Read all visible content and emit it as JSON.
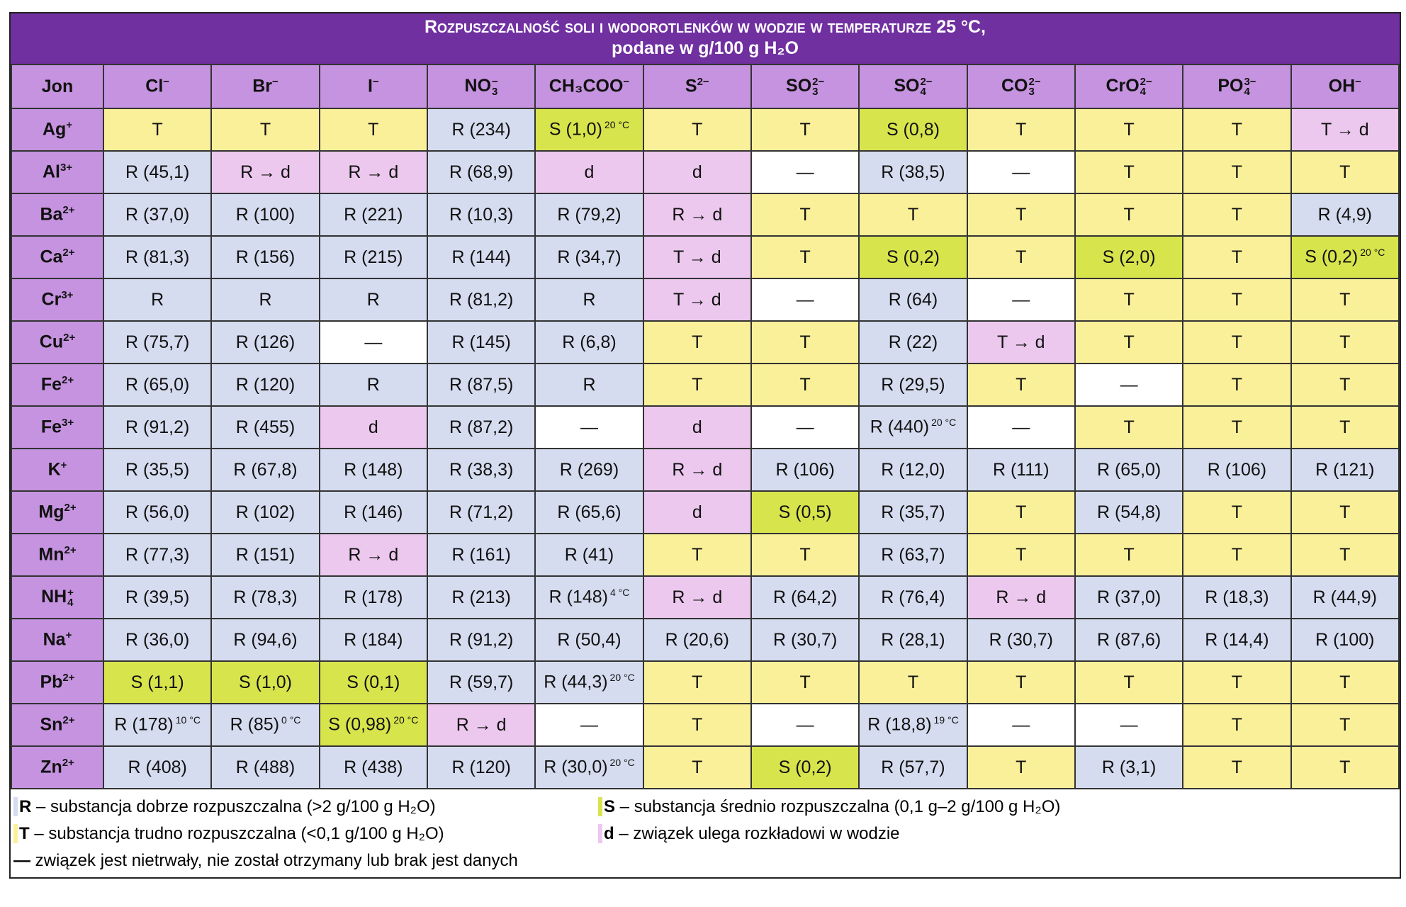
{
  "title": {
    "line1": "Rozpuszczalność soli i wodorotlenków w wodzie w temperaturze 25 °C,",
    "line2": "podane w g/100 g H₂O"
  },
  "header": {
    "corner": "Jon",
    "anions": [
      {
        "base": "Cl",
        "sup": "−"
      },
      {
        "base": "Br",
        "sup": "−"
      },
      {
        "base": "I",
        "sup": "−"
      },
      {
        "base": "NO",
        "sub": "3",
        "sup": "−"
      },
      {
        "base": "CH₃COO",
        "sup": "−"
      },
      {
        "base": "S",
        "sup": "2−"
      },
      {
        "base": "SO",
        "sub": "3",
        "sup": "2−"
      },
      {
        "base": "SO",
        "sub": "4",
        "sup": "2−"
      },
      {
        "base": "CO",
        "sub": "3",
        "sup": "2−"
      },
      {
        "base": "CrO",
        "sub": "4",
        "sup": "2−"
      },
      {
        "base": "PO",
        "sub": "4",
        "sup": "3−"
      },
      {
        "base": "OH",
        "sup": "−"
      }
    ]
  },
  "colors": {
    "T": "#fbf09a",
    "R": "#d5dcef",
    "S": "#d8e44c",
    "d": "#ecc8ee",
    "title": "#7030a0",
    "header": "#c593df"
  },
  "rows": [
    {
      "ion": {
        "base": "Ag",
        "sup": "+"
      },
      "cells": [
        "T",
        "T",
        "T",
        "R (234)",
        {
          "v": "S (1,0)",
          "n": "20 °C"
        },
        "T",
        "T",
        "S (0,8)",
        "T",
        "T",
        "T",
        "T → d"
      ]
    },
    {
      "ion": {
        "base": "Al",
        "sup": "3+"
      },
      "cells": [
        "R (45,1)",
        "R → d",
        "R → d",
        "R (68,9)",
        "d",
        "d",
        "—",
        "R (38,5)",
        "—",
        "T",
        "T",
        "T"
      ]
    },
    {
      "ion": {
        "base": "Ba",
        "sup": "2+"
      },
      "cells": [
        "R (37,0)",
        "R (100)",
        "R (221)",
        "R (10,3)",
        "R (79,2)",
        "R → d",
        "T",
        "T",
        "T",
        "T",
        "T",
        "R (4,9)"
      ]
    },
    {
      "ion": {
        "base": "Ca",
        "sup": "2+"
      },
      "cells": [
        "R (81,3)",
        "R (156)",
        "R (215)",
        "R (144)",
        "R (34,7)",
        "T → d",
        "T",
        "S (0,2)",
        "T",
        "S (2,0)",
        "T",
        {
          "v": "S (0,2)",
          "n": "20 °C"
        }
      ]
    },
    {
      "ion": {
        "base": "Cr",
        "sup": "3+"
      },
      "cells": [
        "R",
        "R",
        "R",
        "R (81,2)",
        "R",
        "T → d",
        "—",
        "R (64)",
        "—",
        "T",
        "T",
        "T"
      ]
    },
    {
      "ion": {
        "base": "Cu",
        "sup": "2+"
      },
      "cells": [
        "R (75,7)",
        "R (126)",
        "—",
        "R (145)",
        "R (6,8)",
        "T",
        "T",
        "R (22)",
        "T → d",
        "T",
        "T",
        "T"
      ]
    },
    {
      "ion": {
        "base": "Fe",
        "sup": "2+"
      },
      "cells": [
        "R (65,0)",
        "R (120)",
        "R",
        "R (87,5)",
        "R",
        "T",
        "T",
        "R (29,5)",
        "T",
        "—",
        "T",
        "T"
      ]
    },
    {
      "ion": {
        "base": "Fe",
        "sup": "3+"
      },
      "cells": [
        "R (91,2)",
        "R (455)",
        "d",
        "R (87,2)",
        "—",
        "d",
        "—",
        {
          "v": "R (440)",
          "n": "20 °C"
        },
        "—",
        "T",
        "T",
        "T"
      ]
    },
    {
      "ion": {
        "base": "K",
        "sup": "+"
      },
      "cells": [
        "R (35,5)",
        "R (67,8)",
        "R (148)",
        "R (38,3)",
        "R (269)",
        "R → d",
        "R (106)",
        "R (12,0)",
        "R (111)",
        "R (65,0)",
        "R (106)",
        "R (121)"
      ]
    },
    {
      "ion": {
        "base": "Mg",
        "sup": "2+"
      },
      "cells": [
        "R (56,0)",
        "R (102)",
        "R (146)",
        "R (71,2)",
        "R (65,6)",
        "d",
        "S (0,5)",
        "R (35,7)",
        "T",
        "R (54,8)",
        "T",
        "T"
      ]
    },
    {
      "ion": {
        "base": "Mn",
        "sup": "2+"
      },
      "cells": [
        "R (77,3)",
        "R (151)",
        "R → d",
        "R (161)",
        "R (41)",
        "T",
        "T",
        "R (63,7)",
        "T",
        "T",
        "T",
        "T"
      ]
    },
    {
      "ion": {
        "base": "NH",
        "sub": "4",
        "sup": "+"
      },
      "cells": [
        "R (39,5)",
        "R (78,3)",
        "R (178)",
        "R (213)",
        {
          "v": "R (148)",
          "n": "4 °C"
        },
        "R → d",
        "R (64,2)",
        "R (76,4)",
        "R → d",
        "R (37,0)",
        "R (18,3)",
        "R (44,9)"
      ]
    },
    {
      "ion": {
        "base": "Na",
        "sup": "+"
      },
      "cells": [
        "R (36,0)",
        "R (94,6)",
        "R (184)",
        "R (91,2)",
        "R (50,4)",
        "R (20,6)",
        "R (30,7)",
        "R (28,1)",
        "R (30,7)",
        "R (87,6)",
        "R (14,4)",
        "R (100)"
      ]
    },
    {
      "ion": {
        "base": "Pb",
        "sup": "2+"
      },
      "cells": [
        "S (1,1)",
        "S (1,0)",
        "S (0,1)",
        "R (59,7)",
        {
          "v": "R (44,3)",
          "n": "20 °C"
        },
        "T",
        "T",
        "T",
        "T",
        "T",
        "T",
        "T"
      ]
    },
    {
      "ion": {
        "base": "Sn",
        "sup": "2+"
      },
      "cells": [
        {
          "v": "R (178)",
          "n": "10 °C"
        },
        {
          "v": "R (85)",
          "n": "0 °C"
        },
        {
          "v": "S (0,98)",
          "n": "20 °C"
        },
        "R → d",
        "—",
        "T",
        "—",
        {
          "v": "R (18,8)",
          "n": "19 °C"
        },
        "—",
        "—",
        "T",
        "T"
      ]
    },
    {
      "ion": {
        "base": "Zn",
        "sup": "2+"
      },
      "cells": [
        "R (408)",
        "R (488)",
        "R (438)",
        "R (120)",
        {
          "v": "R (30,0)",
          "n": "20 °C"
        },
        "T",
        "S (0,2)",
        "R (57,7)",
        "T",
        "R (3,1)",
        "T",
        "T"
      ]
    }
  ],
  "legend": [
    {
      "key": "R",
      "text": " – substancja dobrze rozpuszczalna (>2 g/100 g H₂O)",
      "color": "#d5dcef"
    },
    {
      "key": "S",
      "text": " – substancja średnio rozpuszczalna (0,1 g–2 g/100 g H₂O)",
      "color": "#d8e44c"
    },
    {
      "key": "T",
      "text": " – substancja trudno rozpuszczalna (<0,1 g/100 g H₂O)",
      "color": "#fbf09a"
    },
    {
      "key": "d",
      "text": " – związek ulega rozkładowi w wodzie",
      "color": "#ecc8ee"
    },
    {
      "key": "—",
      "text": " związek jest nietrwały, nie został otrzymany lub brak jest danych",
      "color": "#ffffff"
    }
  ]
}
